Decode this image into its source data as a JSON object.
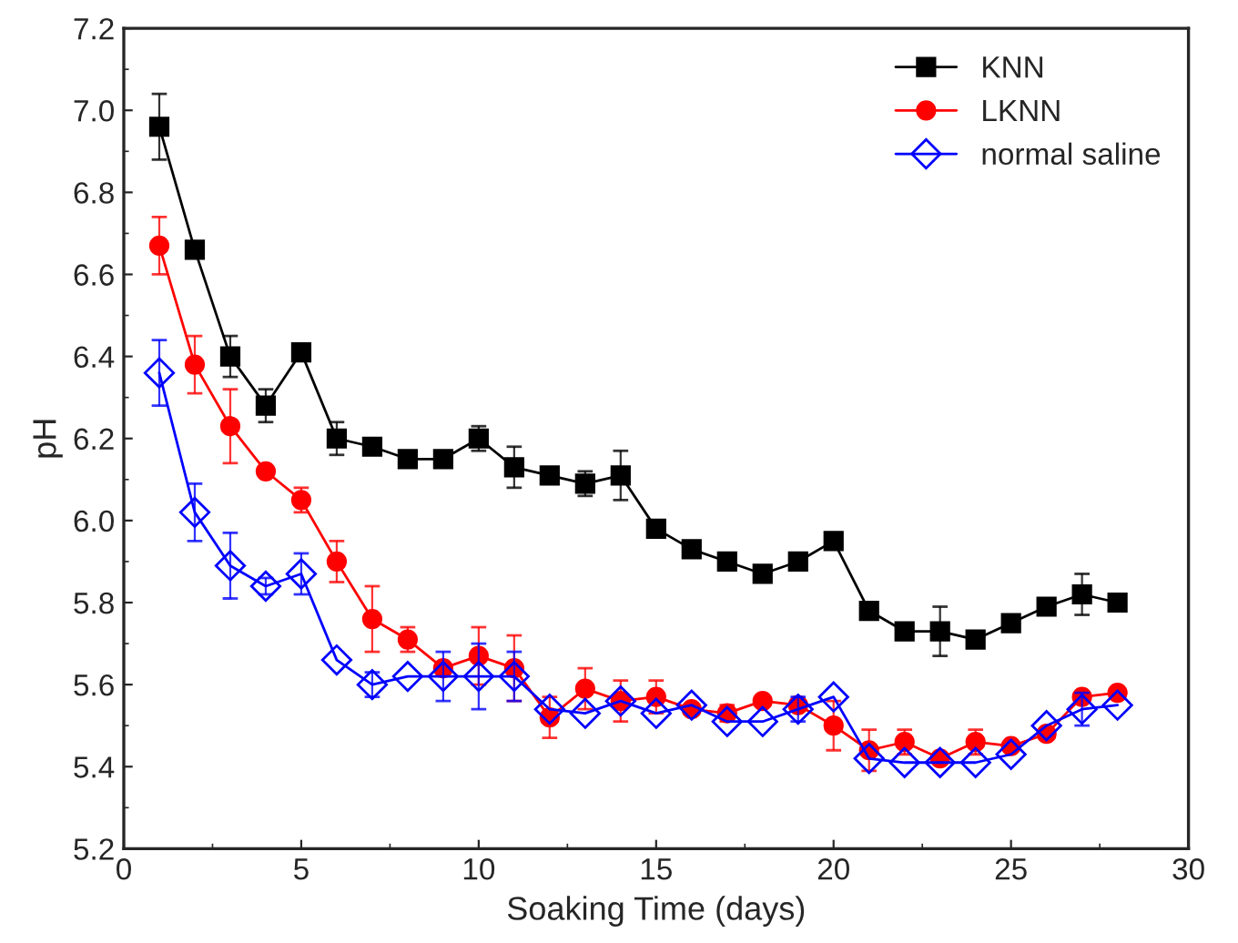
{
  "chart_data": {
    "type": "line",
    "xlabel": "Soaking Time (days)",
    "ylabel": "pH",
    "x": [
      1,
      2,
      3,
      4,
      5,
      6,
      7,
      8,
      9,
      10,
      11,
      12,
      13,
      14,
      15,
      16,
      17,
      18,
      19,
      20,
      21,
      22,
      23,
      24,
      25,
      26,
      27,
      28
    ],
    "xlim": [
      0,
      30
    ],
    "xticks": [
      0,
      5,
      10,
      15,
      20,
      25,
      30
    ],
    "ylim": [
      5.2,
      7.2
    ],
    "yticks": [
      {
        "value": 5.2,
        "label": "5.2"
      },
      {
        "value": 5.4,
        "label": "5.4"
      },
      {
        "value": 5.6,
        "label": "5.6"
      },
      {
        "value": 5.8,
        "label": "5.8"
      },
      {
        "value": 6.0,
        "label": "6.0"
      },
      {
        "value": 6.2,
        "label": "6.2"
      },
      {
        "value": 6.4,
        "label": "6.4"
      },
      {
        "value": 6.6,
        "label": "6.6"
      },
      {
        "value": 6.8,
        "label": "6.8"
      },
      {
        "value": 7.0,
        "label": "7.0"
      },
      {
        "value": 7.2,
        "label": "7.2"
      }
    ],
    "legend": "top right",
    "grid": false,
    "series": [
      {
        "name": "KNN",
        "color": "#000000",
        "marker": "square",
        "values": [
          6.96,
          6.66,
          6.4,
          6.28,
          6.41,
          6.2,
          6.18,
          6.15,
          6.15,
          6.2,
          6.13,
          6.11,
          6.09,
          6.11,
          5.98,
          5.93,
          5.9,
          5.87,
          5.9,
          5.95,
          5.78,
          5.73,
          5.73,
          5.71,
          5.75,
          5.79,
          5.82,
          5.8
        ],
        "errors": [
          0.08,
          null,
          0.05,
          0.04,
          null,
          0.04,
          null,
          null,
          null,
          0.03,
          0.05,
          null,
          0.03,
          0.06,
          null,
          null,
          null,
          null,
          null,
          null,
          null,
          null,
          0.06,
          null,
          null,
          null,
          0.05,
          null
        ]
      },
      {
        "name": "LKNN",
        "color": "#ff0000",
        "marker": "circle",
        "values": [
          6.67,
          6.38,
          6.23,
          6.12,
          6.05,
          5.9,
          5.76,
          5.71,
          5.64,
          5.67,
          5.64,
          5.52,
          5.59,
          5.56,
          5.57,
          5.54,
          5.53,
          5.56,
          5.55,
          5.5,
          5.44,
          5.46,
          5.42,
          5.46,
          5.45,
          5.48,
          5.57,
          5.58
        ],
        "errors": [
          0.07,
          0.07,
          0.09,
          null,
          0.03,
          0.05,
          0.08,
          0.03,
          null,
          0.07,
          0.08,
          0.05,
          0.05,
          0.05,
          0.04,
          null,
          0.02,
          null,
          null,
          0.06,
          0.05,
          0.03,
          null,
          0.03,
          null,
          null,
          null,
          null
        ]
      },
      {
        "name": "normal saline",
        "color": "#0000ff",
        "marker": "diamond",
        "values": [
          6.36,
          6.02,
          5.89,
          5.84,
          5.87,
          5.66,
          5.6,
          5.62,
          5.62,
          5.62,
          5.62,
          5.54,
          5.53,
          5.56,
          5.53,
          5.55,
          5.51,
          5.51,
          5.54,
          5.57,
          5.42,
          5.41,
          5.41,
          5.41,
          5.43,
          5.5,
          5.54,
          5.55
        ],
        "errors": [
          0.08,
          0.07,
          0.08,
          0.02,
          0.05,
          null,
          0.03,
          null,
          0.06,
          0.08,
          0.06,
          null,
          null,
          null,
          null,
          null,
          null,
          null,
          0.03,
          null,
          null,
          null,
          null,
          null,
          null,
          null,
          0.04,
          null
        ]
      }
    ]
  }
}
